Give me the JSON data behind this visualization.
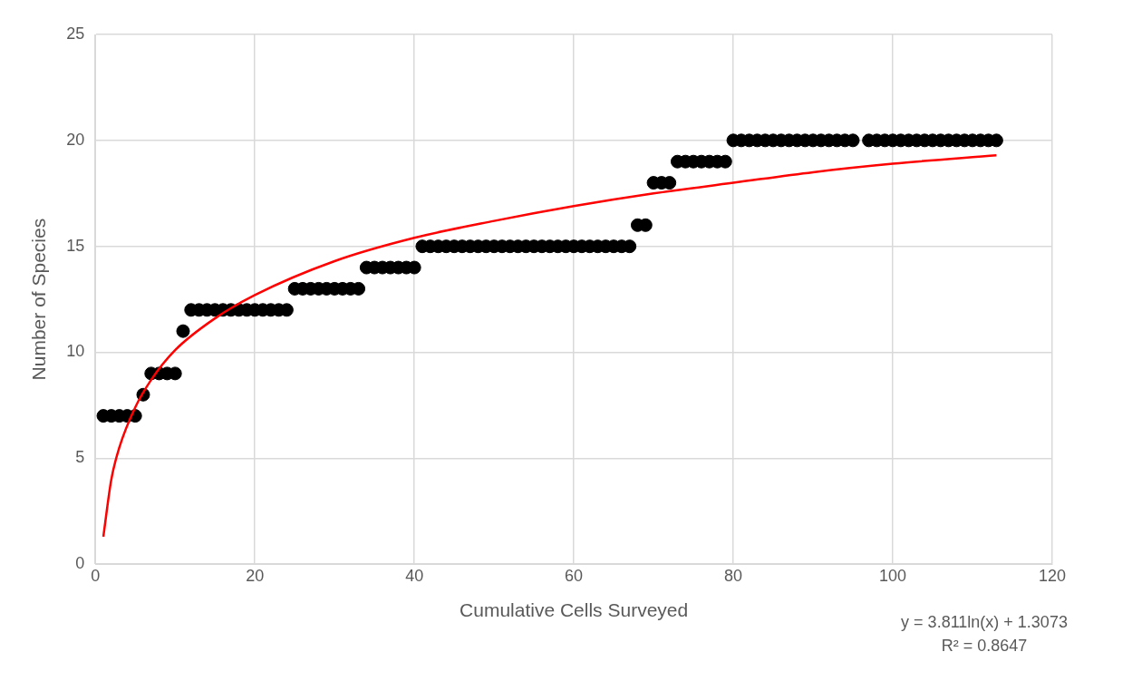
{
  "chart_data": {
    "type": "scatter",
    "xlabel": "Cumulative Cells Surveyed",
    "ylabel": "Number of Species",
    "xlim": [
      0,
      120
    ],
    "xticks": [
      0,
      20,
      40,
      60,
      80,
      100,
      120
    ],
    "ylim": [
      0,
      25
    ],
    "yticks": [
      0,
      5,
      10,
      15,
      20,
      25
    ],
    "grid": true,
    "legend": false,
    "marker": "circle",
    "series": [
      {
        "color": "#000000",
        "x": [
          1,
          2,
          3,
          4,
          5,
          6,
          7,
          8,
          9,
          10,
          11,
          12,
          13,
          14,
          15,
          16,
          17,
          18,
          19,
          20,
          21,
          22,
          23,
          24,
          25,
          26,
          27,
          28,
          29,
          30,
          31,
          32,
          33,
          34,
          35,
          36,
          37,
          38,
          39,
          40,
          41,
          42,
          43,
          44,
          45,
          46,
          47,
          48,
          49,
          50,
          51,
          52,
          53,
          54,
          55,
          56,
          57,
          58,
          59,
          60,
          61,
          62,
          63,
          64,
          65,
          66,
          67,
          68,
          69,
          70,
          71,
          72,
          73,
          74,
          75,
          76,
          77,
          78,
          79,
          80,
          81,
          82,
          83,
          84,
          85,
          86,
          87,
          88,
          89,
          90,
          91,
          92,
          93,
          94,
          95,
          97,
          98,
          99,
          100,
          101,
          102,
          103,
          104,
          105,
          106,
          107,
          108,
          109,
          110,
          111,
          112,
          113
        ],
        "values": [
          7,
          7,
          7,
          7,
          7,
          8,
          9,
          9,
          9,
          9,
          11,
          12,
          12,
          12,
          12,
          12,
          12,
          12,
          12,
          12,
          12,
          12,
          12,
          12,
          13,
          13,
          13,
          13,
          13,
          13,
          13,
          13,
          13,
          14,
          14,
          14,
          14,
          14,
          14,
          14,
          15,
          15,
          15,
          15,
          15,
          15,
          15,
          15,
          15,
          15,
          15,
          15,
          15,
          15,
          15,
          15,
          15,
          15,
          15,
          15,
          15,
          15,
          15,
          15,
          15,
          15,
          15,
          16,
          16,
          18,
          18,
          18,
          19,
          19,
          19,
          19,
          19,
          19,
          19,
          20,
          20,
          20,
          20,
          20,
          20,
          20,
          20,
          20,
          20,
          20,
          20,
          20,
          20,
          20,
          20,
          20,
          20,
          20,
          20,
          20,
          20,
          20,
          20,
          20,
          20,
          20,
          20,
          20,
          20,
          20,
          20,
          20
        ]
      },
      {
        "type": "line",
        "color": "#ff0000",
        "marker": "none",
        "x": [
          1,
          2,
          3,
          5,
          7,
          10,
          15,
          20,
          30,
          40,
          50,
          60,
          70,
          80,
          90,
          100,
          113
        ],
        "values": [
          1.3,
          4.0,
          5.5,
          7.4,
          8.7,
          10.1,
          11.6,
          12.7,
          14.3,
          15.4,
          16.2,
          16.9,
          17.5,
          18.0,
          18.5,
          18.9,
          19.3
        ]
      }
    ],
    "annotations": [
      "y = 3.811ln(x) + 1.3073",
      "R² = 0.8647"
    ]
  }
}
